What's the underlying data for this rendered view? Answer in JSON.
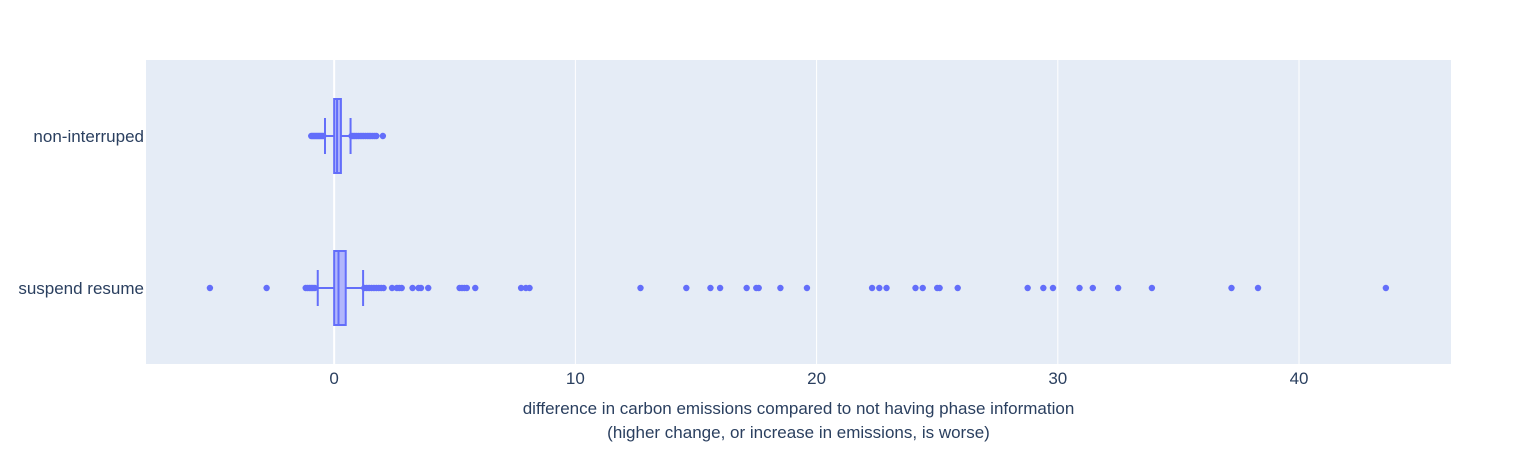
{
  "chart_data": {
    "type": "box",
    "orientation": "horizontal",
    "xlabel_lines": [
      "difference in carbon emissions compared to not having phase information",
      "(higher change, or increase in emissions, is worse)"
    ],
    "ylabel": "",
    "xlim": [
      -7.8,
      46.3
    ],
    "xticks": [
      0,
      10,
      20,
      30,
      40
    ],
    "grid": true,
    "legend": "none",
    "colors": {
      "plot_bg": "#e5ecf6",
      "grid": "#ffffff",
      "box_line": "#636efa",
      "box_fill": "#b1b6fc",
      "text": "#2a3f5f"
    },
    "series": [
      {
        "category": "non-interruped",
        "stats": {
          "lowerfence": -0.38,
          "q1": 0.0,
          "median": 0.12,
          "q3": 0.28,
          "upperfence": 0.68
        },
        "outliers": [
          -0.95,
          -0.9,
          -0.85,
          -0.8,
          -0.75,
          -0.7,
          -0.65,
          -0.6,
          -0.55,
          -0.5,
          -0.45,
          0.72,
          0.78,
          0.85,
          0.92,
          1.0,
          1.08,
          1.15,
          1.22,
          1.3,
          1.38,
          1.45,
          1.52,
          1.6,
          1.68,
          1.75,
          2.02
        ]
      },
      {
        "category": "suspend resume",
        "stats": {
          "lowerfence": -0.68,
          "q1": 0.0,
          "median": 0.18,
          "q3": 0.48,
          "upperfence": 1.2
        },
        "outliers": [
          -5.15,
          -2.8,
          -1.18,
          -1.1,
          -1.02,
          -0.95,
          -0.88,
          -0.8,
          1.25,
          1.35,
          1.45,
          1.55,
          1.65,
          1.75,
          1.85,
          1.95,
          2.05,
          2.4,
          2.6,
          2.7,
          2.8,
          3.25,
          3.5,
          3.6,
          3.9,
          5.2,
          5.3,
          5.4,
          5.5,
          5.85,
          7.75,
          7.95,
          8.1,
          12.7,
          14.6,
          15.6,
          16.0,
          17.1,
          17.5,
          17.6,
          18.5,
          19.6,
          22.3,
          22.6,
          22.9,
          24.1,
          24.4,
          25.0,
          25.1,
          25.85,
          28.75,
          29.4,
          29.8,
          30.9,
          31.45,
          32.5,
          33.9,
          37.2,
          38.3,
          43.6
        ]
      }
    ]
  }
}
